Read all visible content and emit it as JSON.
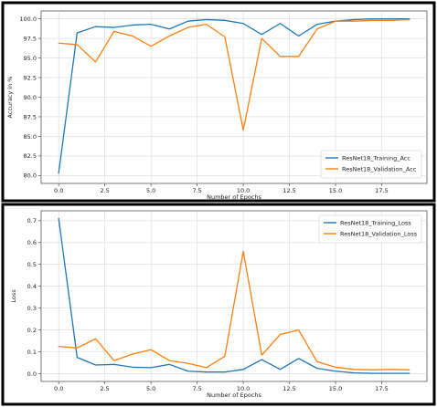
{
  "chart_data": [
    {
      "type": "line",
      "title": "",
      "xlabel": "Number of Epochs",
      "ylabel": "Accuracy in %",
      "xlim": [
        -0.95,
        19.95
      ],
      "ylim": [
        79.0,
        101.0
      ],
      "xticks": [
        0.0,
        2.5,
        5.0,
        7.5,
        10.0,
        12.5,
        15.0,
        17.5
      ],
      "xtick_labels": [
        "0.0",
        "2.5",
        "5.0",
        "7.5",
        "10.0",
        "12.5",
        "15.0",
        "17.5"
      ],
      "yticks": [
        80.0,
        82.5,
        85.0,
        87.5,
        90.0,
        92.5,
        95.0,
        97.5,
        100.0
      ],
      "ytick_labels": [
        "80.0",
        "82.5",
        "85.0",
        "87.5",
        "90.0",
        "92.5",
        "95.0",
        "97.5",
        "100.0"
      ],
      "grid": true,
      "legend_position": "bottom-right",
      "x": [
        0,
        1,
        2,
        3,
        4,
        5,
        6,
        7,
        8,
        9,
        10,
        11,
        12,
        13,
        14,
        15,
        16,
        17,
        18,
        19
      ],
      "series": [
        {
          "name": "ResNet18_Training_Acc",
          "color": "#1f77b4",
          "values": [
            80.3,
            98.2,
            99.0,
            98.9,
            99.2,
            99.3,
            98.7,
            99.7,
            99.9,
            99.8,
            99.4,
            98.0,
            99.4,
            97.8,
            99.3,
            99.7,
            99.9,
            100.0,
            100.0,
            100.0
          ]
        },
        {
          "name": "ResNet18_Validation_Acc",
          "color": "#ff7f0e",
          "values": [
            96.9,
            96.7,
            94.5,
            98.4,
            97.8,
            96.5,
            97.8,
            98.9,
            99.3,
            97.7,
            85.8,
            97.5,
            95.2,
            95.2,
            98.7,
            99.7,
            99.7,
            99.8,
            99.8,
            99.9
          ]
        }
      ]
    },
    {
      "type": "line",
      "title": "",
      "xlabel": "Number of Epochs",
      "ylabel": "Loss",
      "xlim": [
        -0.95,
        19.95
      ],
      "ylim": [
        -0.035,
        0.745
      ],
      "xticks": [
        0.0,
        2.5,
        5.0,
        7.5,
        10.0,
        12.5,
        15.0,
        17.5
      ],
      "xtick_labels": [
        "0.0",
        "2.5",
        "5.0",
        "7.5",
        "10.0",
        "12.5",
        "15.0",
        "17.5"
      ],
      "yticks": [
        0.0,
        0.1,
        0.2,
        0.3,
        0.4,
        0.5,
        0.6,
        0.7
      ],
      "ytick_labels": [
        "0.0",
        "0.1",
        "0.2",
        "0.3",
        "0.4",
        "0.5",
        "0.6",
        "0.7"
      ],
      "grid": true,
      "legend_position": "top-right",
      "x": [
        0,
        1,
        2,
        3,
        4,
        5,
        6,
        7,
        8,
        9,
        10,
        11,
        12,
        13,
        14,
        15,
        16,
        17,
        18,
        19
      ],
      "series": [
        {
          "name": "ResNet18_Training_Loss",
          "color": "#1f77b4",
          "values": [
            0.71,
            0.075,
            0.04,
            0.043,
            0.03,
            0.028,
            0.043,
            0.012,
            0.008,
            0.008,
            0.02,
            0.065,
            0.02,
            0.07,
            0.025,
            0.012,
            0.004,
            0.002,
            0.002,
            0.002
          ]
        },
        {
          "name": "ResNet18_Validation_Loss",
          "color": "#ff7f0e",
          "values": [
            0.125,
            0.118,
            0.16,
            0.06,
            0.09,
            0.11,
            0.06,
            0.048,
            0.028,
            0.08,
            0.56,
            0.085,
            0.18,
            0.2,
            0.055,
            0.03,
            0.02,
            0.018,
            0.02,
            0.018
          ]
        }
      ]
    }
  ]
}
